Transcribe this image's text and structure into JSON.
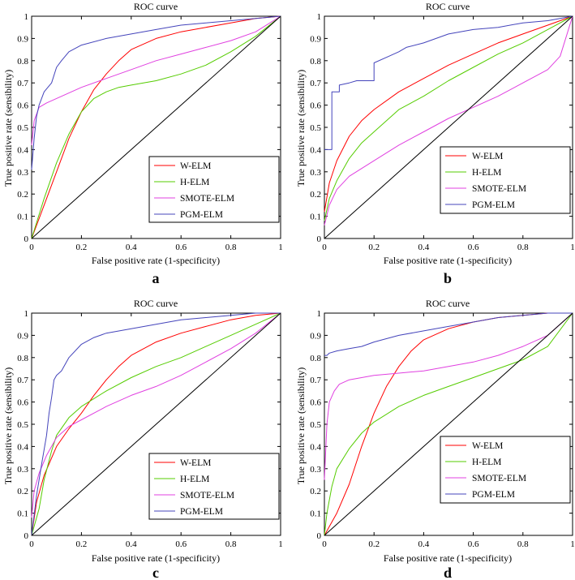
{
  "colors": {
    "w_elm": "#ff0000",
    "h_elm": "#55cc00",
    "smote_elm": "#e040e0",
    "pgm_elm": "#4444bb",
    "axis": "#000000"
  },
  "chart_data": [
    {
      "type": "line",
      "panel_label": "a",
      "title": "ROC curve",
      "xlabel": "False positive rate (1-specificity)",
      "ylabel": "True positive rate (sensibility)",
      "xlim": [
        0,
        1
      ],
      "ylim": [
        0,
        1
      ],
      "xticks": [
        "0",
        "0.2",
        "0.4",
        "0.6",
        "0.8",
        "1"
      ],
      "yticks": [
        "0",
        "0.1",
        "0.2",
        "0.3",
        "0.4",
        "0.5",
        "0.6",
        "0.7",
        "0.8",
        "0.9",
        "1"
      ],
      "legend_position": "lower-right",
      "series": [
        {
          "name": "W-ELM",
          "color_key": "w_elm",
          "x": [
            0,
            0.05,
            0.1,
            0.15,
            0.2,
            0.25,
            0.3,
            0.35,
            0.4,
            0.5,
            0.6,
            0.7,
            0.8,
            0.9,
            1
          ],
          "y": [
            0,
            0.15,
            0.3,
            0.45,
            0.57,
            0.67,
            0.74,
            0.8,
            0.85,
            0.9,
            0.93,
            0.95,
            0.97,
            0.99,
            1
          ]
        },
        {
          "name": "H-ELM",
          "color_key": "h_elm",
          "x": [
            0,
            0.05,
            0.1,
            0.15,
            0.2,
            0.25,
            0.3,
            0.35,
            0.4,
            0.5,
            0.6,
            0.7,
            0.8,
            0.9,
            1
          ],
          "y": [
            0,
            0.18,
            0.34,
            0.47,
            0.57,
            0.63,
            0.66,
            0.68,
            0.69,
            0.71,
            0.74,
            0.78,
            0.84,
            0.91,
            1
          ]
        },
        {
          "name": "SMOTE-ELM",
          "color_key": "smote_elm",
          "x": [
            0,
            0.01,
            0.03,
            0.06,
            0.1,
            0.2,
            0.3,
            0.4,
            0.5,
            0.6,
            0.7,
            0.8,
            0.9,
            1
          ],
          "y": [
            0.42,
            0.53,
            0.59,
            0.61,
            0.63,
            0.68,
            0.72,
            0.76,
            0.8,
            0.83,
            0.86,
            0.89,
            0.93,
            1
          ]
        },
        {
          "name": "PGM-ELM",
          "color_key": "pgm_elm",
          "x": [
            0,
            0.01,
            0.02,
            0.03,
            0.05,
            0.08,
            0.1,
            0.12,
            0.15,
            0.2,
            0.3,
            0.4,
            0.5,
            0.6,
            0.7,
            0.8,
            0.9,
            1
          ],
          "y": [
            0.31,
            0.45,
            0.55,
            0.6,
            0.66,
            0.7,
            0.77,
            0.8,
            0.84,
            0.87,
            0.9,
            0.92,
            0.94,
            0.96,
            0.97,
            0.98,
            0.99,
            1
          ]
        }
      ]
    },
    {
      "type": "line",
      "panel_label": "b",
      "title": "ROC curve",
      "xlabel": "False positive rate (1-specificity)",
      "ylabel": "True positive rate (sensibility)",
      "xlim": [
        0,
        1
      ],
      "ylim": [
        0,
        1
      ],
      "xticks": [
        "0",
        "0.2",
        "0.4",
        "0.6",
        "0.8",
        "1"
      ],
      "yticks": [
        "0",
        "0.1",
        "0.2",
        "0.3",
        "0.4",
        "0.5",
        "0.6",
        "0.7",
        "0.8",
        "0.9",
        "1"
      ],
      "legend_position": "lower-right",
      "series": [
        {
          "name": "W-ELM",
          "color_key": "w_elm",
          "x": [
            0,
            0.02,
            0.05,
            0.1,
            0.15,
            0.2,
            0.3,
            0.4,
            0.5,
            0.6,
            0.7,
            0.8,
            0.9,
            1
          ],
          "y": [
            0.12,
            0.25,
            0.35,
            0.46,
            0.53,
            0.58,
            0.66,
            0.72,
            0.78,
            0.83,
            0.88,
            0.92,
            0.96,
            1
          ]
        },
        {
          "name": "H-ELM",
          "color_key": "h_elm",
          "x": [
            0,
            0.02,
            0.05,
            0.1,
            0.15,
            0.2,
            0.3,
            0.4,
            0.5,
            0.6,
            0.7,
            0.8,
            0.9,
            1
          ],
          "y": [
            0.08,
            0.18,
            0.26,
            0.36,
            0.43,
            0.48,
            0.58,
            0.64,
            0.71,
            0.77,
            0.83,
            0.88,
            0.94,
            1
          ]
        },
        {
          "name": "SMOTE-ELM",
          "color_key": "smote_elm",
          "x": [
            0,
            0.02,
            0.05,
            0.1,
            0.2,
            0.3,
            0.4,
            0.5,
            0.6,
            0.7,
            0.8,
            0.9,
            0.95,
            1
          ],
          "y": [
            0.06,
            0.15,
            0.22,
            0.28,
            0.35,
            0.42,
            0.48,
            0.54,
            0.59,
            0.64,
            0.7,
            0.76,
            0.82,
            1
          ]
        },
        {
          "name": "PGM-ELM",
          "color_key": "pgm_elm",
          "x": [
            0,
            0.03,
            0.03,
            0.06,
            0.06,
            0.1,
            0.13,
            0.2,
            0.2,
            0.26,
            0.3,
            0.33,
            0.4,
            0.5,
            0.6,
            0.7,
            0.8,
            0.9,
            1
          ],
          "y": [
            0.4,
            0.4,
            0.66,
            0.66,
            0.69,
            0.7,
            0.71,
            0.71,
            0.79,
            0.82,
            0.84,
            0.86,
            0.88,
            0.92,
            0.94,
            0.95,
            0.97,
            0.98,
            1
          ]
        }
      ]
    },
    {
      "type": "line",
      "panel_label": "c",
      "title": "ROC curve",
      "xlabel": "False positive rate (1-specificity)",
      "ylabel": "True positive rate (sensibility)",
      "xlim": [
        0,
        1
      ],
      "ylim": [
        0,
        1
      ],
      "xticks": [
        "0",
        "0.2",
        "0.4",
        "0.6",
        "0.8",
        "1"
      ],
      "yticks": [
        "0",
        "0.1",
        "0.2",
        "0.3",
        "0.4",
        "0.5",
        "0.6",
        "0.7",
        "0.8",
        "0.9",
        "1"
      ],
      "legend_position": "lower-right",
      "series": [
        {
          "name": "W-ELM",
          "color_key": "w_elm",
          "x": [
            0,
            0.02,
            0.05,
            0.1,
            0.15,
            0.2,
            0.25,
            0.3,
            0.35,
            0.4,
            0.5,
            0.6,
            0.7,
            0.8,
            0.9,
            1
          ],
          "y": [
            0,
            0.15,
            0.27,
            0.4,
            0.48,
            0.55,
            0.63,
            0.7,
            0.76,
            0.81,
            0.87,
            0.91,
            0.94,
            0.97,
            0.99,
            1
          ]
        },
        {
          "name": "H-ELM",
          "color_key": "h_elm",
          "x": [
            0,
            0.03,
            0.05,
            0.08,
            0.1,
            0.15,
            0.2,
            0.3,
            0.4,
            0.5,
            0.6,
            0.7,
            0.8,
            0.9,
            1
          ],
          "y": [
            0,
            0.12,
            0.25,
            0.38,
            0.45,
            0.53,
            0.58,
            0.65,
            0.71,
            0.76,
            0.8,
            0.85,
            0.9,
            0.95,
            1
          ]
        },
        {
          "name": "SMOTE-ELM",
          "color_key": "smote_elm",
          "x": [
            0,
            0.01,
            0.03,
            0.06,
            0.1,
            0.15,
            0.2,
            0.3,
            0.4,
            0.5,
            0.6,
            0.7,
            0.8,
            0.9,
            1
          ],
          "y": [
            0.08,
            0.2,
            0.28,
            0.36,
            0.44,
            0.49,
            0.52,
            0.58,
            0.63,
            0.67,
            0.72,
            0.78,
            0.84,
            0.91,
            1
          ]
        },
        {
          "name": "PGM-ELM",
          "color_key": "pgm_elm",
          "x": [
            0,
            0.02,
            0.04,
            0.06,
            0.07,
            0.08,
            0.09,
            0.1,
            0.12,
            0.15,
            0.2,
            0.25,
            0.3,
            0.4,
            0.5,
            0.6,
            0.7,
            0.8,
            0.9,
            1
          ],
          "y": [
            0,
            0.18,
            0.32,
            0.45,
            0.55,
            0.62,
            0.7,
            0.72,
            0.74,
            0.8,
            0.86,
            0.89,
            0.91,
            0.93,
            0.95,
            0.97,
            0.98,
            0.99,
            1,
            1
          ]
        }
      ]
    },
    {
      "type": "line",
      "panel_label": "d",
      "title": "ROC curve",
      "xlabel": "False positive rate (1-specificity)",
      "ylabel": "True positive rate (sensibility)",
      "xlim": [
        0,
        1
      ],
      "ylim": [
        0,
        1
      ],
      "xticks": [
        "0",
        "0.2",
        "0.4",
        "0.6",
        "0.8",
        "1"
      ],
      "yticks": [
        "0",
        "0.1",
        "0.2",
        "0.3",
        "0.4",
        "0.5",
        "0.6",
        "0.7",
        "0.8",
        "0.9",
        "1"
      ],
      "legend_position": "lower-right",
      "series": [
        {
          "name": "W-ELM",
          "color_key": "w_elm",
          "x": [
            0,
            0.05,
            0.1,
            0.15,
            0.2,
            0.25,
            0.3,
            0.35,
            0.4,
            0.5,
            0.6,
            0.7,
            0.8,
            0.9,
            1
          ],
          "y": [
            0,
            0.1,
            0.23,
            0.4,
            0.55,
            0.67,
            0.76,
            0.83,
            0.88,
            0.93,
            0.96,
            0.98,
            0.99,
            1,
            1
          ]
        },
        {
          "name": "H-ELM",
          "color_key": "h_elm",
          "x": [
            0,
            0.01,
            0.03,
            0.05,
            0.1,
            0.15,
            0.2,
            0.3,
            0.4,
            0.5,
            0.6,
            0.7,
            0.8,
            0.9,
            1
          ],
          "y": [
            0,
            0.1,
            0.22,
            0.3,
            0.39,
            0.46,
            0.51,
            0.58,
            0.63,
            0.67,
            0.71,
            0.75,
            0.79,
            0.85,
            1
          ]
        },
        {
          "name": "SMOTE-ELM",
          "color_key": "smote_elm",
          "x": [
            0,
            0.01,
            0.02,
            0.04,
            0.06,
            0.1,
            0.2,
            0.3,
            0.4,
            0.5,
            0.6,
            0.7,
            0.8,
            0.9,
            1
          ],
          "y": [
            0.25,
            0.5,
            0.6,
            0.65,
            0.68,
            0.7,
            0.72,
            0.73,
            0.74,
            0.76,
            0.78,
            0.81,
            0.85,
            0.9,
            1
          ]
        },
        {
          "name": "PGM-ELM",
          "color_key": "pgm_elm",
          "x": [
            0,
            0.01,
            0.02,
            0.05,
            0.1,
            0.15,
            0.2,
            0.3,
            0.4,
            0.5,
            0.6,
            0.7,
            0.8,
            0.9,
            1
          ],
          "y": [
            0.81,
            0.81,
            0.82,
            0.83,
            0.84,
            0.85,
            0.87,
            0.9,
            0.92,
            0.94,
            0.96,
            0.98,
            0.99,
            1,
            1
          ]
        }
      ]
    }
  ]
}
